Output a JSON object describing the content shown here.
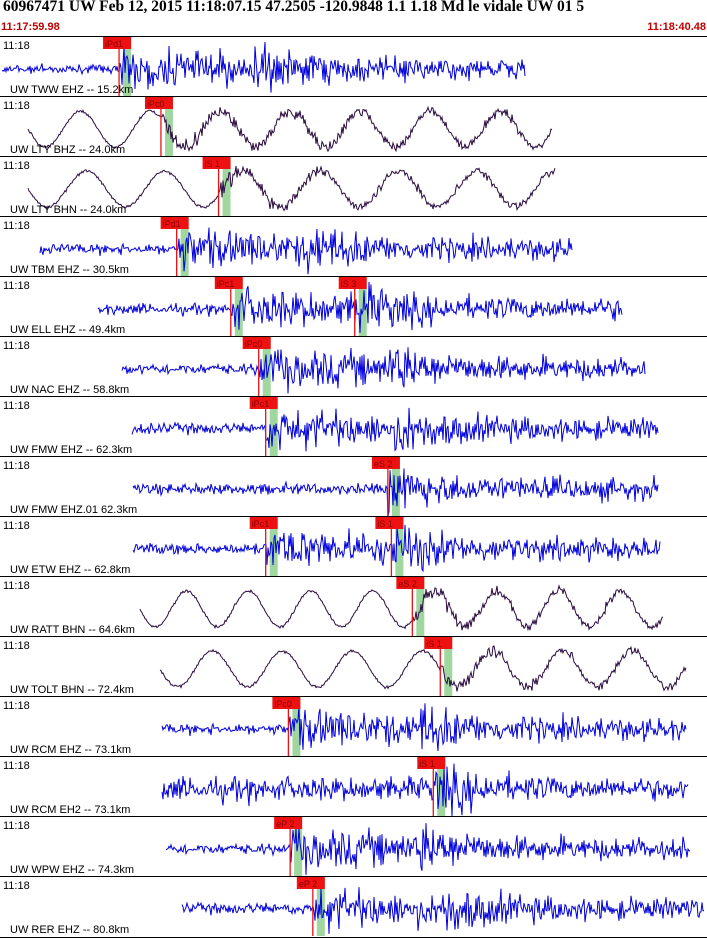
{
  "header": {
    "title": "60967471 UW Feb 12, 2015 11:18:07.15   47.2505 -120.9848  1.1 1.18 Md le vidale UW 01    5",
    "start_time": "11:17:59.98",
    "end_time": "11:18:40.48"
  },
  "colors": {
    "vertical_trace": "#0000dd",
    "horizontal_trace": "#2a0b40",
    "pick_box": "#ee1111",
    "pick_text": "#880000",
    "window_band": "#9fd79f",
    "time_text": "#c00000"
  },
  "chart_data": {
    "type": "line",
    "title": "60967471 UW Feb 12, 2015 11:18:07.15   47.2505 -120.9848  1.1 1.18 Md le vidale UW 01    5",
    "x_axis": {
      "start": "11:17:59.98",
      "end": "11:18:40.48",
      "unit": "time"
    },
    "tick_label": "11:18",
    "series": [
      {
        "name": "UW TWW EHZ -- 15.2km",
        "component": "vertical",
        "picks": [
          {
            "label": "iPd1",
            "time": "11:18:06.8"
          }
        ]
      },
      {
        "name": "UW LTY BHZ -- 24.0km",
        "component": "vertical_long",
        "picks": [
          {
            "label": "iPc0",
            "time": "11:18:09.2"
          }
        ]
      },
      {
        "name": "UW LTY BHN -- 24.0km",
        "component": "horizontal",
        "picks": [
          {
            "label": "iS 1",
            "time": "11:18:12.5"
          }
        ]
      },
      {
        "name": "UW TBM EHZ -- 30.5km",
        "component": "vertical",
        "picks": [
          {
            "label": "iPd1",
            "time": "11:18:10.1"
          }
        ]
      },
      {
        "name": "UW ELL EHZ -- 49.4km",
        "component": "vertical",
        "picks": [
          {
            "label": "iPc1",
            "time": "11:18:13.2"
          },
          {
            "label": "iS 3",
            "time": "11:18:20.3"
          }
        ]
      },
      {
        "name": "UW NAC EHZ -- 58.8km",
        "component": "vertical",
        "picks": [
          {
            "label": "iPc0",
            "time": "11:18:14.8"
          }
        ]
      },
      {
        "name": "UW FMW EHZ -- 62.3km",
        "component": "vertical",
        "picks": [
          {
            "label": "iPc1",
            "time": "11:18:15.2"
          }
        ]
      },
      {
        "name": "UW FMW EHZ.01 62.3km",
        "component": "vertical",
        "picks": [
          {
            "label": "eS 2",
            "time": "11:18:22.2"
          }
        ]
      },
      {
        "name": "UW ETW EHZ -- 62.8km",
        "component": "vertical",
        "picks": [
          {
            "label": "iPc1",
            "time": "11:18:15.2"
          },
          {
            "label": "iS 1",
            "time": "11:18:22.4"
          }
        ]
      },
      {
        "name": "UW RATT BHN -- 64.6km",
        "component": "horizontal",
        "picks": [
          {
            "label": "eS 2",
            "time": "11:18:23.6"
          }
        ]
      },
      {
        "name": "UW TOLT BHN -- 72.4km",
        "component": "horizontal",
        "picks": [
          {
            "label": "iS 1",
            "time": "11:18:25.2"
          }
        ]
      },
      {
        "name": "UW RCM EHZ -- 73.1km",
        "component": "vertical",
        "picks": [
          {
            "label": "iPc0",
            "time": "11:18:16.5"
          }
        ]
      },
      {
        "name": "UW RCM EH2 -- 73.1km",
        "component": "horizontal_blue",
        "picks": [
          {
            "label": "iS 1",
            "time": "11:18:24.8"
          }
        ]
      },
      {
        "name": "UW WPW EHZ -- 74.3km",
        "component": "vertical",
        "picks": [
          {
            "label": "eP 2",
            "time": "11:18:16.6"
          }
        ]
      },
      {
        "name": "UW RER EHZ -- 80.8km",
        "component": "vertical",
        "picks": [
          {
            "label": "eP 2",
            "time": "11:18:17.9"
          }
        ]
      }
    ]
  }
}
